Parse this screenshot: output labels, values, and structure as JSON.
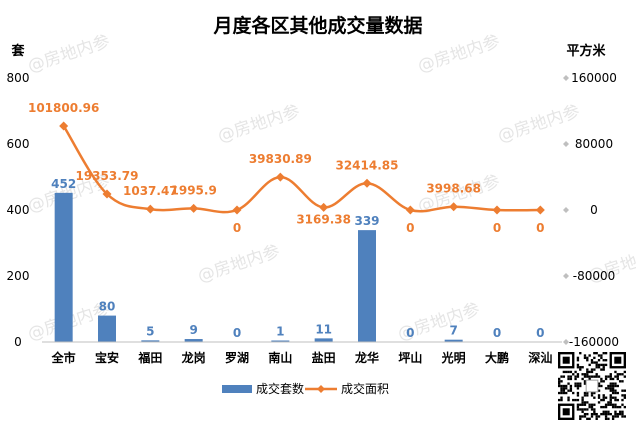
{
  "colors": {
    "bar": "#4f81bd",
    "bar_label": "#4f81bd",
    "line": "#ed7d31",
    "line_label": "#ed7d31",
    "axis_text": "#000000",
    "watermark": "#c8c8c8"
  },
  "watermark_text": "@房地内参",
  "qr_code": "qr-code-image",
  "chart_data": {
    "type": "bar",
    "title": "月度各区其他成交量数据",
    "categories": [
      "全市",
      "宝安",
      "福田",
      "龙岗",
      "罗湖",
      "南山",
      "盐田",
      "龙华",
      "坪山",
      "光明",
      "大鹏",
      "深汕"
    ],
    "left_unit": "套",
    "right_unit": "平方米",
    "ylim": [
      0,
      800
    ],
    "y_ticks": [
      "800",
      "600",
      "400",
      "200",
      "0"
    ],
    "y2lim": [
      -160000,
      160000
    ],
    "y2_ticks": [
      "160000",
      "80000",
      "0",
      "-80000",
      "-160000"
    ],
    "grid": false,
    "legend_position": "bottom",
    "series": [
      {
        "name": "成交套数",
        "type": "bar",
        "axis": "left",
        "values": [
          452,
          80,
          5,
          9,
          0,
          1,
          11,
          339,
          0,
          7,
          0,
          0
        ],
        "labels": [
          "452",
          "80",
          "5",
          "9",
          "0",
          "1",
          "11",
          "339",
          "0",
          "7",
          "0",
          "0"
        ]
      },
      {
        "name": "成交面积",
        "type": "line",
        "axis": "right",
        "values": [
          101800.96,
          19353.79,
          1037.47,
          1995.9,
          0,
          39830.89,
          3169.38,
          32414.85,
          0,
          3998.68,
          0,
          0
        ],
        "labels": [
          "101800.96",
          "19353.79",
          "1037.47",
          "1995.9",
          "0",
          "39830.89",
          "3169.38",
          "32414.85",
          "0",
          "3998.68",
          "0",
          "0"
        ]
      }
    ]
  }
}
